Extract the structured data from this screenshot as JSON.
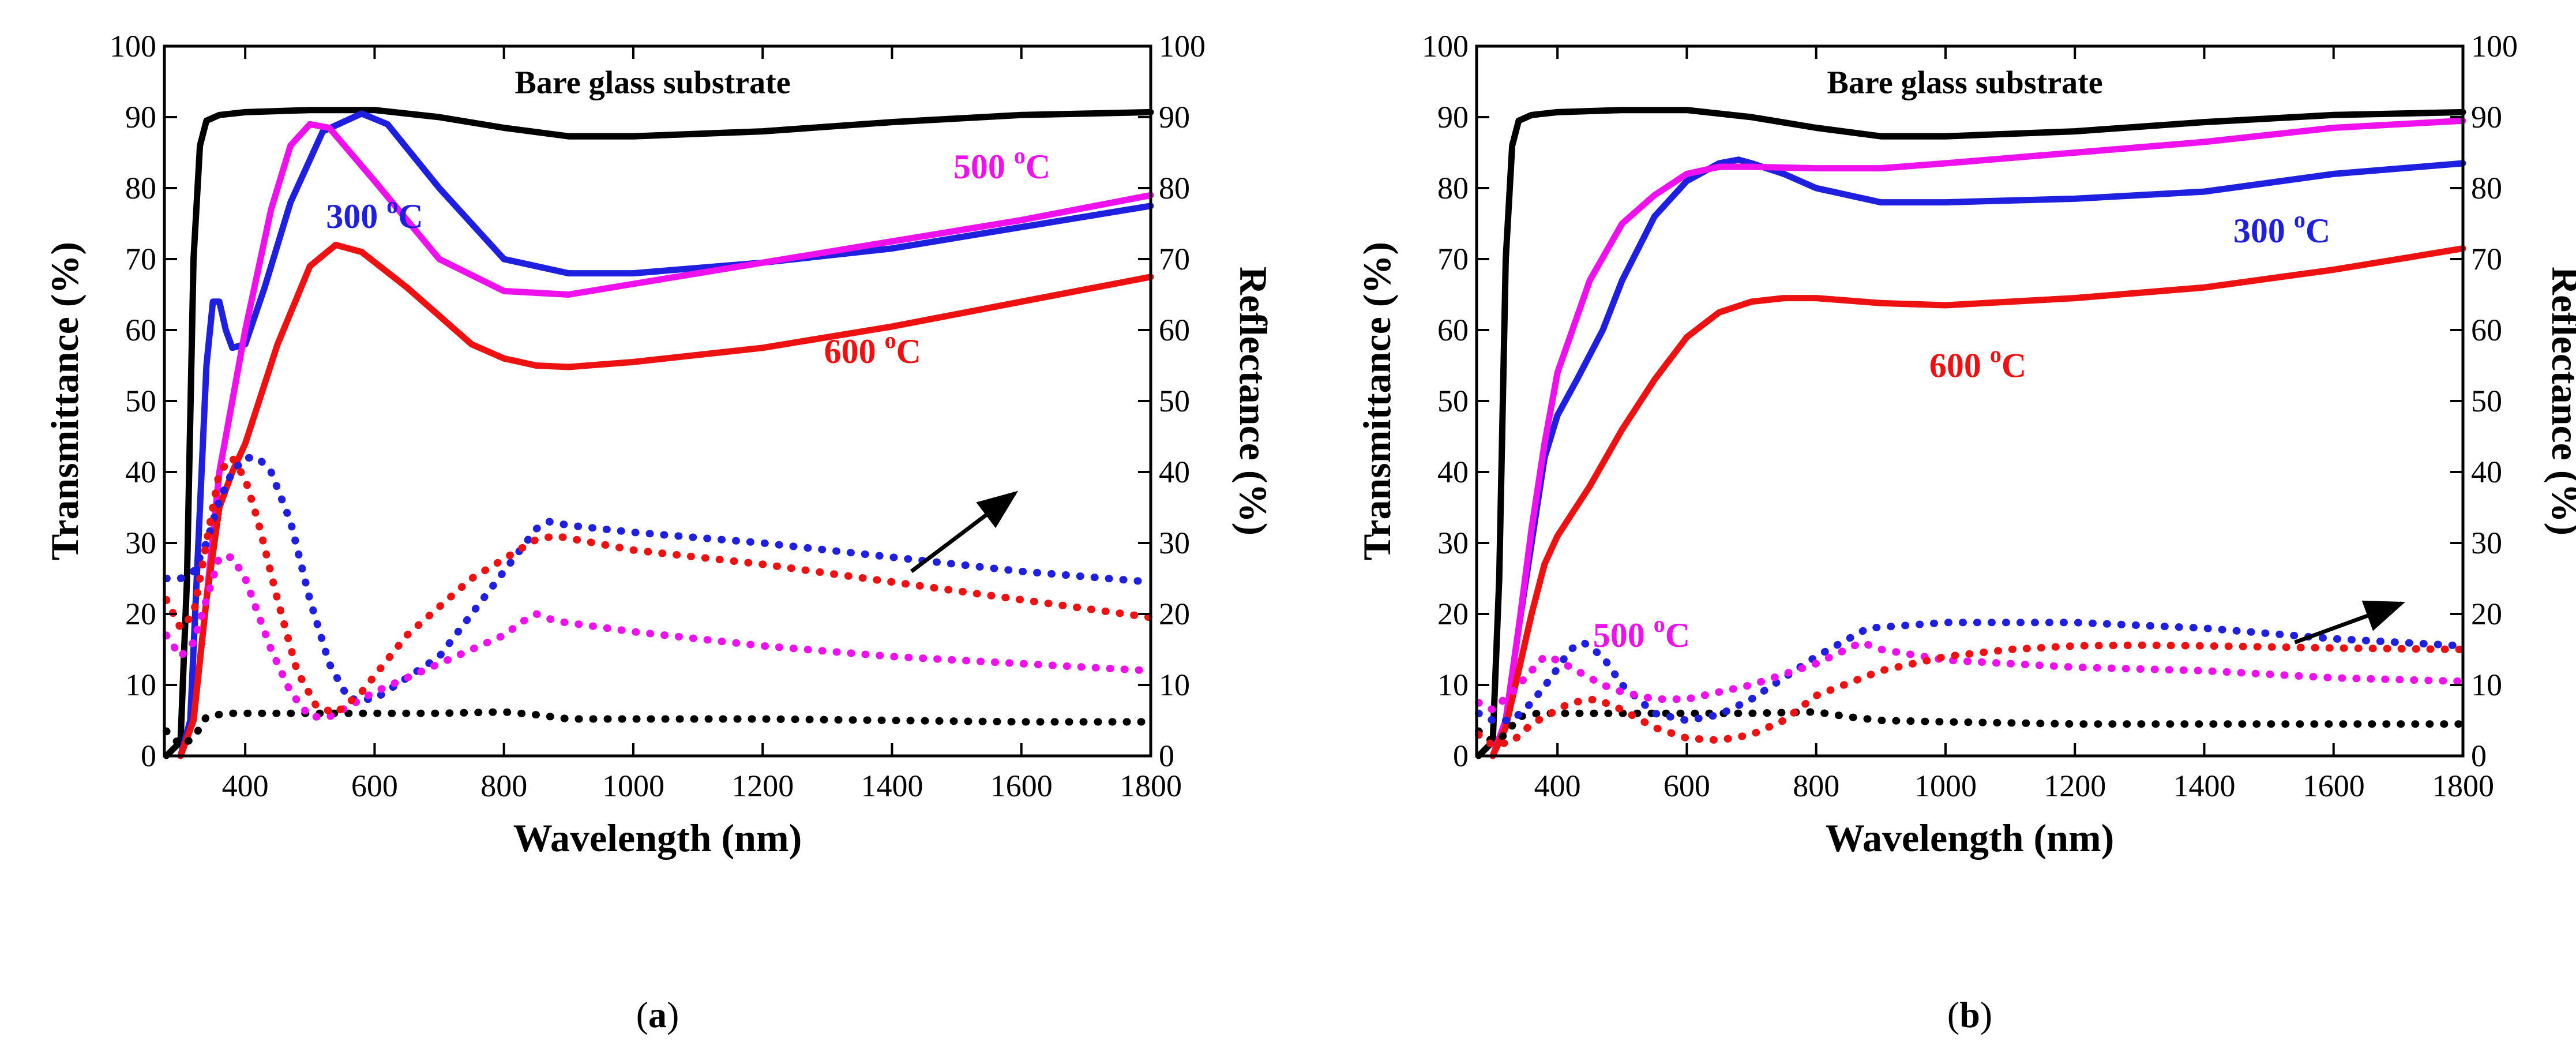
{
  "chart_data": [
    {
      "type": "line",
      "panel": "a",
      "panel_label": {
        "open": "(",
        "letter": "a",
        "close": ")"
      },
      "xlabel": "Wavelength (nm)",
      "ylabel_left": "Transmittance (%)",
      "ylabel_right": "Reflectance (%)",
      "xlim": [
        275,
        1800
      ],
      "ylim": [
        0,
        100
      ],
      "xticks": [
        400,
        600,
        800,
        1000,
        1200,
        1400,
        1600,
        1800
      ],
      "yticks": [
        0,
        10,
        20,
        30,
        40,
        50,
        60,
        70,
        80,
        90,
        100
      ],
      "annotations": [
        {
          "text": "Bare glass substrate",
          "color": "#000000",
          "x": 1030,
          "y": 95
        },
        {
          "text": "300 ",
          "sup": "o",
          "unit": "C",
          "color": "#1f1fe0",
          "x": 600,
          "y": 76
        },
        {
          "text": "500 ",
          "sup": "o",
          "unit": "C",
          "color": "#ee11ee",
          "x": 1570,
          "y": 83
        },
        {
          "text": "600 ",
          "sup": "o",
          "unit": "C",
          "color": "#ee1111",
          "x": 1370,
          "y": 57
        }
      ],
      "arrow": {
        "from": [
          1430,
          26
        ],
        "to": [
          1590,
          37
        ]
      },
      "series": [
        {
          "name": "Bare glass substrate (T)",
          "style": "solid",
          "color": "#000000",
          "x": [
            278,
            300,
            310,
            320,
            330,
            340,
            360,
            400,
            500,
            600,
            700,
            800,
            900,
            1000,
            1200,
            1400,
            1600,
            1800
          ],
          "values": [
            0,
            2,
            25,
            70,
            86,
            89.5,
            90.3,
            90.7,
            91,
            91,
            90,
            88.5,
            87.3,
            87.3,
            88,
            89.3,
            90.3,
            90.7
          ]
        },
        {
          "name": "300 oC (T)",
          "style": "solid",
          "color": "#1f1fe0",
          "x": [
            300,
            315,
            330,
            340,
            350,
            360,
            370,
            380,
            400,
            430,
            470,
            520,
            580,
            620,
            700,
            800,
            900,
            1000,
            1200,
            1400,
            1600,
            1800
          ],
          "values": [
            0,
            5,
            35,
            55,
            64,
            64,
            60,
            57.5,
            58,
            66,
            78,
            88,
            90.5,
            89,
            80,
            70,
            68,
            68,
            69.5,
            71.5,
            74.5,
            77.5
          ]
        },
        {
          "name": "500 oC (T)",
          "style": "solid",
          "color": "#ee11ee",
          "x": [
            300,
            320,
            340,
            360,
            380,
            400,
            440,
            470,
            500,
            530,
            600,
            700,
            800,
            900,
            1000,
            1200,
            1400,
            1600,
            1800
          ],
          "values": [
            0,
            5,
            22,
            40,
            50,
            60,
            77,
            86,
            89,
            88.5,
            81,
            70,
            65.5,
            65,
            66.5,
            69.5,
            72.5,
            75.5,
            79
          ]
        },
        {
          "name": "600 oC (T)",
          "style": "solid",
          "color": "#ee1111",
          "x": [
            300,
            320,
            340,
            360,
            380,
            400,
            450,
            500,
            540,
            580,
            650,
            700,
            750,
            800,
            850,
            900,
            1000,
            1200,
            1400,
            1600,
            1800
          ],
          "values": [
            0,
            5,
            22,
            35,
            40,
            44,
            58,
            69,
            72,
            71,
            66,
            62,
            58,
            56,
            55,
            54.8,
            55.5,
            57.5,
            60.5,
            64,
            67.5
          ]
        },
        {
          "name": "Bare glass substrate (R)",
          "style": "dotted",
          "color": "#000000",
          "x": [
            278,
            300,
            320,
            340,
            370,
            400,
            500,
            600,
            700,
            800,
            850,
            900,
            1000,
            1200,
            1400,
            1600,
            1800
          ],
          "values": [
            3.5,
            1.5,
            2.5,
            5.5,
            6,
            6,
            6,
            6,
            6,
            6.2,
            5.8,
            5.2,
            5.2,
            5.2,
            5,
            4.8,
            4.8
          ]
        },
        {
          "name": "300 oC (R)",
          "style": "dotted",
          "color": "#1f1fe0",
          "x": [
            278,
            300,
            320,
            340,
            360,
            380,
            400,
            420,
            440,
            470,
            500,
            530,
            560,
            600,
            700,
            800,
            850,
            870,
            900,
            1000,
            1200,
            1400,
            1600,
            1800
          ],
          "values": [
            25,
            25,
            26,
            30,
            36,
            40,
            42,
            42,
            40,
            33,
            22,
            13,
            8,
            8,
            14,
            26,
            32,
            33,
            32.5,
            31.5,
            30,
            28,
            26,
            24.5
          ]
        },
        {
          "name": "500 oC (R)",
          "style": "dotted",
          "color": "#ee11ee",
          "x": [
            278,
            300,
            320,
            340,
            360,
            380,
            400,
            420,
            440,
            470,
            500,
            530,
            560,
            600,
            700,
            800,
            830,
            850,
            880,
            1000,
            1200,
            1400,
            1600,
            1800
          ],
          "values": [
            17,
            14,
            16,
            22,
            28,
            28,
            25,
            20,
            15,
            9,
            5.5,
            5.5,
            7,
            9,
            13,
            17,
            19,
            20,
            19,
            17.5,
            15.5,
            14,
            13,
            12
          ]
        },
        {
          "name": "600 oC (R)",
          "style": "dotted",
          "color": "#ee1111",
          "x": [
            278,
            300,
            320,
            340,
            360,
            380,
            400,
            420,
            450,
            480,
            510,
            540,
            580,
            650,
            750,
            850,
            880,
            1000,
            1200,
            1400,
            1600,
            1800
          ],
          "values": [
            22,
            18,
            20,
            30,
            40,
            42,
            39,
            33,
            22,
            12,
            7,
            6,
            9,
            17,
            25,
            30.5,
            31,
            29,
            27,
            24.5,
            22,
            19.5
          ]
        }
      ]
    },
    {
      "type": "line",
      "panel": "b",
      "panel_label": {
        "open": "(",
        "letter": "b",
        "close": ")"
      },
      "xlabel": "Wavelength (nm)",
      "ylabel_left": "Transmittance (%)",
      "ylabel_right": "Reflectance (%)",
      "xlim": [
        275,
        1800
      ],
      "ylim": [
        0,
        100
      ],
      "xticks": [
        400,
        600,
        800,
        1000,
        1200,
        1400,
        1600,
        1800
      ],
      "yticks": [
        0,
        10,
        20,
        30,
        40,
        50,
        60,
        70,
        80,
        90,
        100
      ],
      "annotations": [
        {
          "text": "Bare glass substrate",
          "color": "#000000",
          "x": 1030,
          "y": 95
        },
        {
          "text": "300 ",
          "sup": "o",
          "unit": "C",
          "color": "#1f1fe0",
          "x": 1520,
          "y": 74
        },
        {
          "text": "500 ",
          "sup": "o",
          "unit": "C",
          "color": "#ee11ee",
          "x": 530,
          "y": 17
        },
        {
          "text": "600 ",
          "sup": "o",
          "unit": "C",
          "color": "#ee1111",
          "x": 1050,
          "y": 55
        }
      ],
      "arrow": {
        "from": [
          1540,
          16
        ],
        "to": [
          1705,
          21.5
        ]
      },
      "series": [
        {
          "name": "Bare glass substrate (T)",
          "style": "solid",
          "color": "#000000",
          "x": [
            278,
            300,
            310,
            320,
            330,
            340,
            360,
            400,
            500,
            600,
            700,
            800,
            900,
            1000,
            1200,
            1400,
            1600,
            1800
          ],
          "values": [
            0,
            2,
            25,
            70,
            86,
            89.5,
            90.3,
            90.7,
            91,
            91,
            90,
            88.5,
            87.3,
            87.3,
            88,
            89.3,
            90.3,
            90.7
          ]
        },
        {
          "name": "300 oC (T)",
          "style": "solid",
          "color": "#1f1fe0",
          "x": [
            300,
            320,
            340,
            360,
            380,
            400,
            430,
            470,
            500,
            550,
            600,
            650,
            680,
            700,
            750,
            800,
            900,
            1000,
            1200,
            1400,
            1600,
            1800
          ],
          "values": [
            0,
            5,
            18,
            30,
            42,
            48,
            53,
            60,
            67,
            76,
            81,
            83.5,
            84,
            83.5,
            82,
            80,
            78,
            78,
            78.5,
            79.5,
            82,
            83.5
          ]
        },
        {
          "name": "500 oC (T)",
          "style": "solid",
          "color": "#ee11ee",
          "x": [
            300,
            320,
            340,
            360,
            380,
            400,
            450,
            500,
            550,
            600,
            650,
            700,
            800,
            900,
            1000,
            1200,
            1400,
            1600,
            1800
          ],
          "values": [
            0,
            5,
            18,
            32,
            44,
            54,
            67,
            75,
            79,
            82,
            83,
            83,
            82.8,
            82.8,
            83.5,
            85,
            86.5,
            88.5,
            89.5
          ]
        },
        {
          "name": "600 oC (T)",
          "style": "solid",
          "color": "#ee1111",
          "x": [
            300,
            320,
            340,
            360,
            380,
            400,
            450,
            500,
            550,
            600,
            650,
            700,
            750,
            800,
            900,
            1000,
            1200,
            1400,
            1600,
            1800
          ],
          "values": [
            0,
            4,
            12,
            20,
            27,
            31,
            38,
            46,
            53,
            59,
            62.5,
            64,
            64.5,
            64.5,
            63.8,
            63.5,
            64.5,
            66,
            68.5,
            71.5
          ]
        },
        {
          "name": "Bare glass substrate (R)",
          "style": "dotted",
          "color": "#000000",
          "x": [
            278,
            300,
            320,
            340,
            370,
            400,
            500,
            600,
            700,
            800,
            850,
            900,
            1000,
            1200,
            1400,
            1600,
            1800
          ],
          "values": [
            3.5,
            2,
            3,
            5.5,
            6,
            6,
            6,
            6,
            6,
            6.2,
            5.5,
            5,
            4.8,
            4.5,
            4.5,
            4.5,
            4.5
          ]
        },
        {
          "name": "300 oC (R)",
          "style": "dotted",
          "color": "#1f1fe0",
          "x": [
            278,
            300,
            330,
            360,
            390,
            420,
            440,
            470,
            500,
            550,
            600,
            650,
            700,
            800,
            880,
            1000,
            1200,
            1400,
            1600,
            1800
          ],
          "values": [
            6,
            5,
            5,
            7.5,
            11,
            15,
            16,
            14,
            10,
            6,
            5,
            5.8,
            8,
            14,
            18,
            18.8,
            18.8,
            18,
            16.5,
            15.5
          ]
        },
        {
          "name": "500 oC (R)",
          "style": "dotted",
          "color": "#ee11ee",
          "x": [
            278,
            300,
            330,
            360,
            380,
            400,
            430,
            470,
            500,
            550,
            600,
            700,
            800,
            870,
            900,
            1000,
            1200,
            1400,
            1600,
            1800
          ],
          "values": [
            7.5,
            6.5,
            9,
            12,
            14,
            13.5,
            12,
            10,
            9,
            8,
            8,
            10,
            13,
            16,
            15,
            13.5,
            12.5,
            12,
            11,
            10.5
          ]
        },
        {
          "name": "600 oC (R)",
          "style": "dotted",
          "color": "#ee1111",
          "x": [
            278,
            300,
            330,
            360,
            390,
            420,
            460,
            500,
            550,
            600,
            650,
            700,
            750,
            800,
            900,
            1000,
            1100,
            1200,
            1300,
            1400,
            1600,
            1800
          ],
          "values": [
            3,
            1.5,
            2,
            4.5,
            6,
            7.5,
            8,
            6.5,
            4,
            2.5,
            2.2,
            3,
            5,
            8.5,
            12,
            14,
            15,
            15.5,
            15.6,
            15.5,
            15.2,
            15
          ]
        }
      ]
    }
  ]
}
